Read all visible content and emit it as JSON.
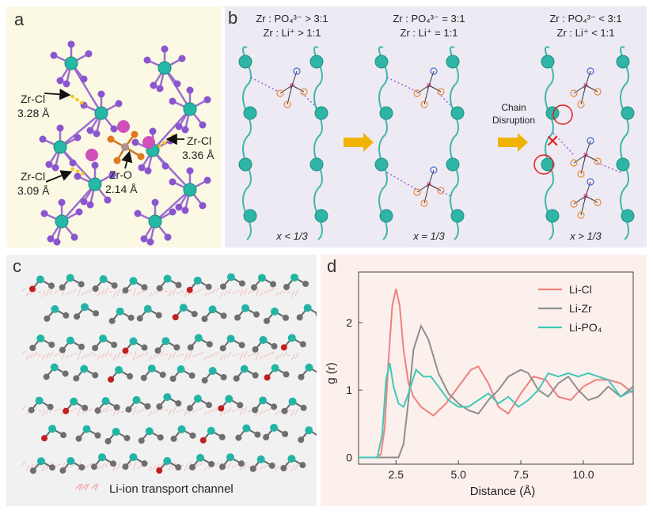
{
  "figure": {
    "panel_labels": {
      "a": "a",
      "b": "b",
      "c": "c",
      "d": "d"
    }
  },
  "panel_a": {
    "annotations": [
      {
        "name": "Zr-Cl",
        "value": "3.28 Å"
      },
      {
        "name": "Zr-Cl",
        "value": "3.36 Å"
      },
      {
        "name": "Zr-Cl",
        "value": "3.09 Å"
      },
      {
        "name": "Zr-O",
        "value": "2.14 Å"
      }
    ]
  },
  "panel_b": {
    "columns": [
      {
        "ratio_po4": "Zr : PO₄³⁻ > 3:1",
        "ratio_li": "Zr : Li⁺ > 1:1",
        "x_label": "x < 1/3"
      },
      {
        "ratio_po4": "Zr : PO₄³⁻ = 3:1",
        "ratio_li": "Zr : Li⁺ = 1:1",
        "x_label": "x = 1/3"
      },
      {
        "ratio_po4": "Zr : PO₄³⁻ < 3:1",
        "ratio_li": "Zr : Li⁺ < 1:1",
        "x_label": "x > 1/3"
      }
    ],
    "chain_disruption": [
      "Chain",
      "Disruption"
    ],
    "atom_labels": {
      "phosphorus": "P",
      "oxygen": "O"
    },
    "colors": {
      "chain": "#3bb8a8",
      "zr_atom": "#2fb5a5",
      "arrow": "#f0b400",
      "oxygen": "#e8893a",
      "cross": "#e02020"
    }
  },
  "panel_c": {
    "legend_label": "Li-ion transport channel",
    "colors": {
      "zr": "#22b5a5",
      "cl": "#6e6e6e",
      "o": "#c21f1f",
      "p": "#a07060",
      "channel": "#f4a8a8"
    }
  },
  "chart_data": {
    "type": "line",
    "xlabel": "Distance (Å)",
    "ylabel": "g (r)",
    "xlim": [
      1.0,
      12.0
    ],
    "ylim": [
      -0.1,
      2.75
    ],
    "xticks": [
      2.5,
      5.0,
      7.5,
      10.0
    ],
    "yticks": [
      0,
      1,
      2
    ],
    "legend_position": "top-right",
    "series": [
      {
        "name": "Li-Cl",
        "color": "#ee8080",
        "x": [
          1.0,
          1.7,
          1.9,
          2.05,
          2.2,
          2.35,
          2.5,
          2.65,
          2.8,
          3.0,
          3.2,
          3.5,
          4.0,
          4.5,
          5.0,
          5.5,
          5.8,
          6.2,
          6.6,
          7.0,
          7.5,
          8.0,
          8.5,
          9.0,
          9.5,
          10.0,
          10.5,
          11.0,
          11.5,
          12.0
        ],
        "y": [
          0,
          0,
          0.05,
          0.45,
          1.45,
          2.25,
          2.5,
          2.25,
          1.6,
          1.1,
          0.9,
          0.75,
          0.62,
          0.8,
          1.05,
          1.3,
          1.35,
          1.1,
          0.75,
          0.65,
          0.95,
          1.2,
          1.15,
          0.9,
          0.85,
          1.05,
          1.15,
          1.15,
          1.1,
          0.95
        ]
      },
      {
        "name": "Li-Zr",
        "color": "#8e8e8e",
        "x": [
          1.0,
          2.6,
          2.8,
          3.0,
          3.2,
          3.5,
          3.8,
          4.2,
          4.6,
          5.0,
          5.4,
          5.8,
          6.2,
          6.6,
          7.0,
          7.5,
          7.8,
          8.2,
          8.6,
          9.0,
          9.4,
          9.8,
          10.2,
          10.6,
          11.0,
          11.5,
          12.0
        ],
        "y": [
          0,
          0,
          0.2,
          0.85,
          1.6,
          1.95,
          1.75,
          1.25,
          0.95,
          0.8,
          0.7,
          0.65,
          0.85,
          1.0,
          1.2,
          1.3,
          1.25,
          1.0,
          0.9,
          1.1,
          1.2,
          1.0,
          0.85,
          0.9,
          1.05,
          0.9,
          1.05
        ]
      },
      {
        "name": "Li-PO₄",
        "color": "#40c8b8",
        "x": [
          1.0,
          1.75,
          1.95,
          2.1,
          2.25,
          2.4,
          2.6,
          2.8,
          3.0,
          3.3,
          3.6,
          3.9,
          4.2,
          4.6,
          5.0,
          5.4,
          5.8,
          6.2,
          6.6,
          7.0,
          7.4,
          7.8,
          8.2,
          8.6,
          9.0,
          9.4,
          9.8,
          10.2,
          10.6,
          11.0,
          11.5,
          12.0
        ],
        "y": [
          0,
          0,
          0.35,
          1.15,
          1.4,
          1.05,
          0.8,
          0.75,
          0.95,
          1.3,
          1.2,
          1.2,
          1.05,
          0.85,
          0.75,
          0.75,
          0.85,
          0.95,
          0.8,
          0.9,
          0.75,
          0.85,
          1.0,
          1.25,
          1.2,
          1.25,
          1.2,
          1.25,
          1.2,
          1.15,
          0.9,
          1.0
        ]
      }
    ]
  }
}
